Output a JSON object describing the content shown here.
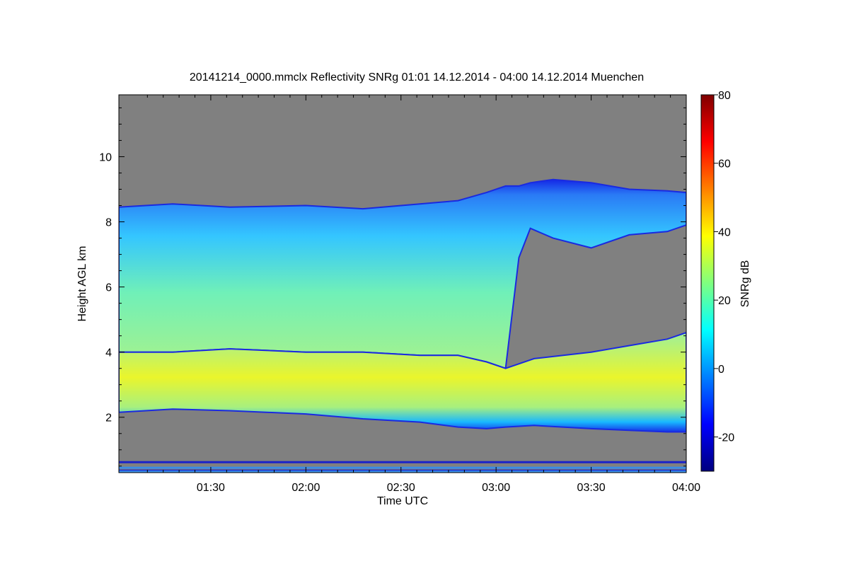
{
  "chart_data": {
    "type": "heatmap",
    "title": "20141214_0000.mmclx Reflectivity SNRg   01:01 14.12.2014 - 04:00 14.12.2014 Muenchen",
    "xlabel": "Time UTC",
    "ylabel": "Height AGL km",
    "x_ticks": [
      "01:30",
      "02:00",
      "02:30",
      "03:00",
      "03:30",
      "04:00"
    ],
    "x_tick_hours": [
      1.5,
      2.0,
      2.5,
      3.0,
      3.5,
      4.0
    ],
    "x_range_hours": [
      1.0167,
      4.0
    ],
    "y_ticks": [
      "2",
      "4",
      "6",
      "8",
      "10"
    ],
    "y_tick_values": [
      2,
      4,
      6,
      8,
      10
    ],
    "y_range_km": [
      0.3,
      11.9
    ],
    "background_color": "#808080",
    "colorbar": {
      "label": "SNRg dB",
      "ticks": [
        "-20",
        "0",
        "20",
        "40",
        "60",
        "80"
      ],
      "tick_values": [
        -20,
        0,
        20,
        40,
        60,
        80
      ],
      "range": [
        -30,
        80
      ],
      "colormap": "jet"
    },
    "cloud_layers": [
      {
        "name": "upper",
        "t_hours": [
          1.0167,
          1.3,
          1.6,
          2.0,
          2.3,
          2.6,
          2.8,
          2.95,
          3.05,
          3.12,
          3.18,
          3.3,
          3.5,
          3.7,
          3.9,
          4.0
        ],
        "top_km": [
          8.45,
          8.55,
          8.45,
          8.5,
          8.4,
          8.55,
          8.65,
          8.9,
          9.1,
          9.1,
          9.2,
          9.3,
          9.2,
          9.0,
          8.95,
          8.9
        ],
        "base_km": [
          4.0,
          4.0,
          4.1,
          4.0,
          4.0,
          3.9,
          3.9,
          3.7,
          3.5,
          6.9,
          7.8,
          7.5,
          7.2,
          7.6,
          7.7,
          7.9
        ]
      },
      {
        "name": "lower",
        "t_hours": [
          1.0167,
          1.3,
          1.6,
          2.0,
          2.3,
          2.6,
          2.8,
          2.95,
          3.05,
          3.2,
          3.5,
          3.7,
          3.9,
          4.0
        ],
        "top_km": [
          4.0,
          4.0,
          4.1,
          4.0,
          4.0,
          3.9,
          3.9,
          3.7,
          3.5,
          3.8,
          4.0,
          4.2,
          4.4,
          4.6
        ],
        "base_km": [
          2.15,
          2.25,
          2.2,
          2.1,
          1.95,
          1.85,
          1.7,
          1.65,
          1.7,
          1.75,
          1.65,
          1.6,
          1.55,
          1.55
        ]
      }
    ],
    "ground_clutter_km": [
      0.62,
      0.45,
      0.36,
      0.33
    ]
  }
}
